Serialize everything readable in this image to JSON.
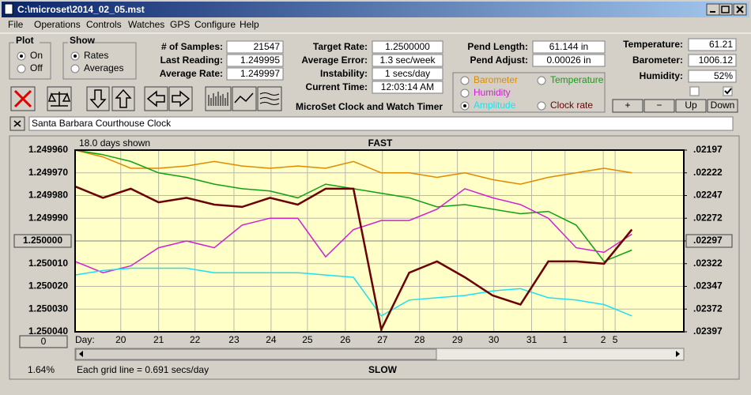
{
  "window": {
    "title": "C:\\microset\\2014_02_05.mst"
  },
  "menu": [
    "File",
    "Operations",
    "Controls",
    "Watches",
    "GPS",
    "Configure",
    "Help"
  ],
  "plot_group": {
    "label": "Plot",
    "options": [
      "On",
      "Off"
    ],
    "selected": 0
  },
  "show_group": {
    "label": "Show",
    "options": [
      "Rates",
      "Averages"
    ],
    "selected": 0
  },
  "readings": [
    [
      {
        "label": "# of Samples:",
        "value": "21547"
      },
      {
        "label": "Last Reading:",
        "value": "1.249995"
      },
      {
        "label": "Average Rate:",
        "value": "1.249997"
      }
    ],
    [
      {
        "label": "Target Rate:",
        "value": "1.2500000"
      },
      {
        "label": "Average Error:",
        "value": "1.3 sec/week"
      },
      {
        "label": "Instability:",
        "value": "1 secs/day"
      },
      {
        "label": "Current Time:",
        "value": "12:03:14 AM"
      }
    ],
    [
      {
        "label": "Pend Length:",
        "value": "61.144 in"
      },
      {
        "label": "Pend Adjust:",
        "value": "0.00026 in"
      }
    ],
    [
      {
        "label": "Temperature:",
        "value": "61.21"
      },
      {
        "label": "Barometer:",
        "value": "1006.12"
      },
      {
        "label": "Humidity:",
        "value": "52%"
      }
    ]
  ],
  "timer_label": "MicroSet Clock and Watch Timer",
  "checkboxes": [
    false,
    true
  ],
  "buttons": [
    "+",
    "−",
    "Up",
    "Down"
  ],
  "watch_name": "Santa Barbara Courthouse Clock",
  "chart_data": {
    "type": "line",
    "top_label": "FAST",
    "bottom_label": "SLOW",
    "days_shown": "18.0 days shown",
    "grid_note": "Each grid line = 0.691 secs/day",
    "x_label": "Day:",
    "offset_button": "0",
    "percent": "1.64%",
    "legend_selected": 3,
    "grid": true,
    "y_inverted": true,
    "ylim": [
      1.24996,
      1.25004
    ],
    "yticks": [
      {
        "value": 1.24996,
        "label": "1.249960"
      },
      {
        "value": 1.24997,
        "label": "1.249970"
      },
      {
        "value": 1.24998,
        "label": "1.249980"
      },
      {
        "value": 1.24999,
        "label": "1.249990"
      },
      {
        "value": 1.25,
        "label": "1.250000"
      },
      {
        "value": 1.25001,
        "label": "1.250010"
      },
      {
        "value": 1.25002,
        "label": "1.250020"
      },
      {
        "value": 1.25003,
        "label": "1.250030"
      },
      {
        "value": 1.25004,
        "label": "1.250040"
      }
    ],
    "y2lim": [
      0.02197,
      0.02397
    ],
    "y2ticks": [
      {
        "value": 0.02197,
        "label": ".02197"
      },
      {
        "value": 0.02222,
        "label": ".02222"
      },
      {
        "value": 0.02247,
        "label": ".02247"
      },
      {
        "value": 0.02272,
        "label": ".02272"
      },
      {
        "value": 0.02297,
        "label": ".02297"
      },
      {
        "value": 0.02322,
        "label": ".02322"
      },
      {
        "value": 0.02347,
        "label": ".02347"
      },
      {
        "value": 0.02372,
        "label": ".02372"
      },
      {
        "value": 0.02397,
        "label": ".02397"
      }
    ],
    "xlim": [
      0,
      16.4
    ],
    "xticks": [
      {
        "value": 1.23,
        "label": "20"
      },
      {
        "value": 2.25,
        "label": "21"
      },
      {
        "value": 3.23,
        "label": "22"
      },
      {
        "value": 4.28,
        "label": "23"
      },
      {
        "value": 5.28,
        "label": "24"
      },
      {
        "value": 6.26,
        "label": "25"
      },
      {
        "value": 7.28,
        "label": "26"
      },
      {
        "value": 8.28,
        "label": "27"
      },
      {
        "value": 9.28,
        "label": "28"
      },
      {
        "value": 10.3,
        "label": "29"
      },
      {
        "value": 11.28,
        "label": "30"
      },
      {
        "value": 12.3,
        "label": "31"
      },
      {
        "value": 13.2,
        "label": "1"
      },
      {
        "value": 14.23,
        "label": "2"
      },
      {
        "value": 14.55,
        "label": "5"
      }
    ],
    "x": [
      0,
      0.75,
      1.5,
      2.25,
      3,
      3.75,
      4.5,
      5.25,
      6,
      6.75,
      7.5,
      8.25,
      9,
      9.75,
      10.5,
      11.25,
      12,
      12.75,
      13.5,
      14.25,
      15
    ],
    "series": [
      {
        "name": "Barometer",
        "color": "#e08a00",
        "values": [
          1.24996,
          1.249963,
          1.249968,
          1.249968,
          1.249967,
          1.249965,
          1.249967,
          1.249968,
          1.249967,
          1.249968,
          1.249965,
          1.24997,
          1.24997,
          1.249972,
          1.24997,
          1.249973,
          1.249975,
          1.249972,
          1.24997,
          1.249968,
          1.24997
        ]
      },
      {
        "name": "Temperature",
        "color": "#10a010",
        "values": [
          1.24996,
          1.249962,
          1.249965,
          1.24997,
          1.249972,
          1.249975,
          1.249977,
          1.249978,
          1.249981,
          1.249975,
          1.249977,
          1.249979,
          1.249981,
          1.249985,
          1.249984,
          1.249986,
          1.249988,
          1.249987,
          1.249993,
          1.250009,
          1.250004
        ]
      },
      {
        "name": "Humidity",
        "color": "#d020d0",
        "values": [
          1.250009,
          1.250014,
          1.250011,
          1.250003,
          1.25,
          1.250003,
          1.249993,
          1.24999,
          1.24999,
          1.250007,
          1.249995,
          1.249991,
          1.249991,
          1.249986,
          1.249977,
          1.249981,
          1.249984,
          1.24999,
          1.250003,
          1.250005,
          1.249997
        ]
      },
      {
        "name": "Amplitude",
        "color": "#20e0f0",
        "values": [
          1.250015,
          1.250013,
          1.250012,
          1.250012,
          1.250012,
          1.250014,
          1.250014,
          1.250014,
          1.250014,
          1.250015,
          1.250016,
          1.250033,
          1.250026,
          1.250025,
          1.250024,
          1.250022,
          1.250021,
          1.250025,
          1.250026,
          1.250028,
          1.250033
        ]
      },
      {
        "name": "Clock rate",
        "color": "#6b0000",
        "values": [
          1.249976,
          1.249981,
          1.249977,
          1.249983,
          1.249981,
          1.249984,
          1.249985,
          1.249981,
          1.249984,
          1.249977,
          1.249977,
          1.250039,
          1.250014,
          1.250009,
          1.250016,
          1.250024,
          1.250028,
          1.250009,
          1.250009,
          1.25001,
          1.249995
        ]
      }
    ]
  }
}
